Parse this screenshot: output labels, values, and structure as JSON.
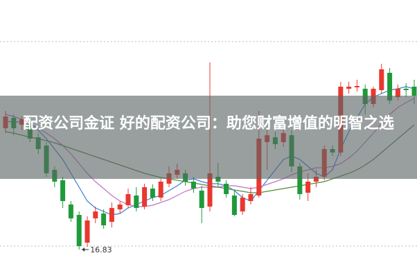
{
  "chart_data": {
    "type": "candlestick",
    "open": [
      18.58,
      18.73,
      18.63,
      18.65,
      18.45,
      18.33,
      17.98,
      17.83,
      17.48,
      17.33,
      16.93,
      17.28,
      17.35,
      17.23,
      17.41,
      17.47,
      17.61,
      17.45,
      17.71,
      17.58,
      17.78,
      17.91,
      17.93,
      17.81,
      17.68,
      17.45,
      17.88,
      17.78,
      17.61,
      17.38,
      17.53,
      17.61,
      18.38,
      18.45,
      18.38,
      18.48,
      18.03,
      17.65,
      17.81,
      17.88,
      18.28,
      18.23,
      19.15,
      19.17,
      19.15,
      18.93,
      19.13,
      19.38,
      19.03,
      19.15,
      19.18
    ],
    "close": [
      18.75,
      18.58,
      18.71,
      18.43,
      18.28,
      17.93,
      17.81,
      17.53,
      17.28,
      16.88,
      17.25,
      17.38,
      17.18,
      17.43,
      17.48,
      17.63,
      17.43,
      17.73,
      17.58,
      17.81,
      17.93,
      17.98,
      17.81,
      17.71,
      17.43,
      17.93,
      17.81,
      17.63,
      17.33,
      17.58,
      17.63,
      18.43,
      18.48,
      18.35,
      18.51,
      18.03,
      17.63,
      17.81,
      17.88,
      18.28,
      18.23,
      19.18,
      19.18,
      19.19,
      18.93,
      19.15,
      19.43,
      18.98,
      19.15,
      19.13,
      19.05
    ],
    "high": [
      18.83,
      18.78,
      18.75,
      18.71,
      18.51,
      18.38,
      18.03,
      17.88,
      17.53,
      17.38,
      17.31,
      17.45,
      17.41,
      17.51,
      17.53,
      17.71,
      17.73,
      17.78,
      17.77,
      17.85,
      18.03,
      18.07,
      17.98,
      17.88,
      17.75,
      19.53,
      18.08,
      17.83,
      17.68,
      17.63,
      17.73,
      18.83,
      18.58,
      18.53,
      18.58,
      18.55,
      18.08,
      17.93,
      17.98,
      18.33,
      18.33,
      19.25,
      19.25,
      19.28,
      19.21,
      19.18,
      19.51,
      19.45,
      19.21,
      19.23,
      19.28
    ],
    "low": [
      18.51,
      18.48,
      18.55,
      18.38,
      18.21,
      17.88,
      17.73,
      17.43,
      17.23,
      16.83,
      16.87,
      17.21,
      17.13,
      17.15,
      17.35,
      17.43,
      17.38,
      17.41,
      17.53,
      17.53,
      17.73,
      17.85,
      17.75,
      17.65,
      17.21,
      17.38,
      17.73,
      17.58,
      17.31,
      17.33,
      17.48,
      17.58,
      17.98,
      18.28,
      18.31,
      17.95,
      17.55,
      17.53,
      17.73,
      17.83,
      18.18,
      18.18,
      19.08,
      19.11,
      18.78,
      18.88,
      19.08,
      18.93,
      18.98,
      19.03,
      18.93
    ],
    "up_color": "#e8382f",
    "down_color": "#1f9a3a",
    "series": [
      {
        "color": "#3a7bd5",
        "values": [
          18.68,
          18.67,
          18.67,
          18.63,
          18.55,
          18.43,
          18.28,
          18.13,
          17.93,
          17.73,
          17.53,
          17.43,
          17.38,
          17.33,
          17.35,
          17.43,
          17.48,
          17.53,
          17.58,
          17.61,
          17.68,
          17.75,
          17.83,
          17.85,
          17.81,
          17.78,
          17.78,
          17.75,
          17.68,
          17.58,
          17.53,
          17.68,
          17.83,
          17.98,
          18.13,
          18.18,
          18.13,
          18.03,
          17.93,
          17.88,
          17.98,
          18.28,
          18.53,
          18.73,
          18.93,
          19.03,
          19.08,
          19.13,
          19.15,
          19.18,
          19.15
        ]
      },
      {
        "color": "#c070c8",
        "values": [
          18.78,
          18.75,
          18.71,
          18.65,
          18.58,
          18.51,
          18.43,
          18.33,
          18.21,
          18.07,
          17.93,
          17.81,
          17.71,
          17.61,
          17.53,
          17.48,
          17.45,
          17.45,
          17.47,
          17.51,
          17.55,
          17.61,
          17.67,
          17.71,
          17.73,
          17.73,
          17.73,
          17.75,
          17.75,
          17.73,
          17.71,
          17.73,
          17.77,
          17.81,
          17.85,
          17.91,
          17.95,
          17.98,
          18.01,
          18.01,
          18.03,
          18.07,
          18.15,
          18.25,
          18.38,
          18.51,
          18.65,
          18.78,
          18.88,
          18.95,
          19.01
        ]
      },
      {
        "color": "#4f8a3c",
        "values": [
          18.53,
          18.51,
          18.48,
          18.45,
          18.43,
          18.4,
          18.37,
          18.33,
          18.29,
          18.25,
          18.21,
          18.17,
          18.13,
          18.09,
          18.05,
          18.01,
          17.97,
          17.93,
          17.9,
          17.87,
          17.85,
          17.83,
          17.81,
          17.79,
          17.77,
          17.75,
          17.73,
          17.71,
          17.69,
          17.67,
          17.65,
          17.65,
          17.67,
          17.69,
          17.71,
          17.73,
          17.75,
          17.77,
          17.79,
          17.81,
          17.85,
          17.89,
          17.93,
          17.98,
          18.05,
          18.13,
          18.23,
          18.33,
          18.43,
          18.53,
          18.63
        ]
      }
    ],
    "annotation": {
      "text": "16.83",
      "index": 9
    }
  },
  "banner": {
    "title": "配资公司金证 好的配资公司：助您财富增值的明智之选"
  }
}
